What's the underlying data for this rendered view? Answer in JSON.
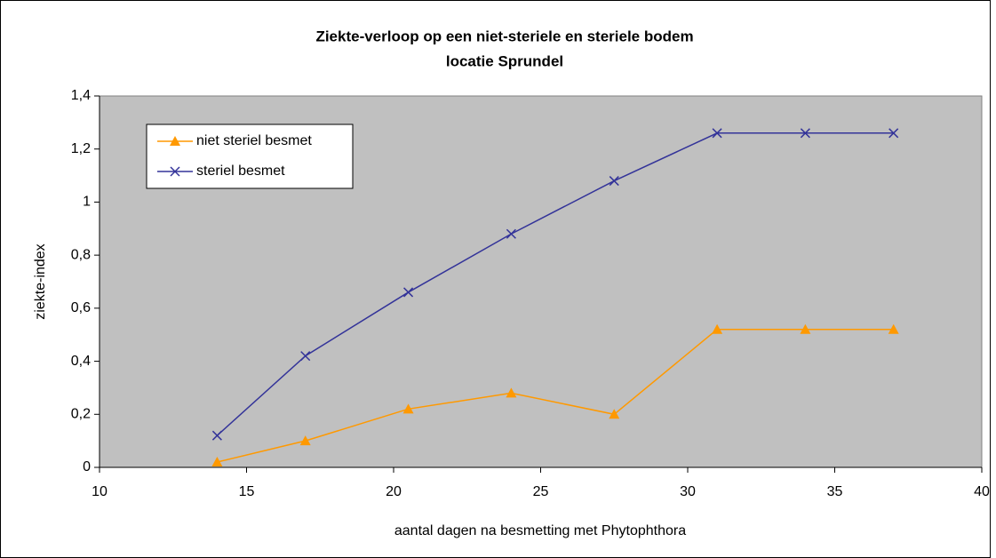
{
  "chart_data": {
    "type": "line",
    "title": "Ziekte-verloop op een niet-steriele en steriele bodem",
    "subtitle": "locatie Sprundel",
    "x_label": "aantal dagen na besmetting met Phytophthora",
    "y_label": "ziekte-index",
    "x": [
      14,
      17,
      20.5,
      24,
      27.5,
      31,
      34,
      37
    ],
    "series": [
      {
        "name": "niet steriel besmet",
        "color": "#ff9900",
        "marker": "triangle",
        "values": [
          0.02,
          0.1,
          0.22,
          0.28,
          0.2,
          0.52,
          0.52,
          0.52
        ]
      },
      {
        "name": "steriel besmet",
        "color": "#333399",
        "marker": "x",
        "values": [
          0.12,
          0.42,
          0.66,
          0.88,
          1.08,
          1.26,
          1.26,
          1.26
        ]
      }
    ],
    "xlim": [
      10,
      40
    ],
    "xticks": [
      10,
      15,
      20,
      25,
      30,
      35,
      40
    ],
    "ylim": [
      0,
      1.4
    ],
    "yticks": [
      0,
      {
        "value": 0.2,
        "label": "0,2"
      },
      {
        "value": 0.4,
        "label": "0,4"
      },
      {
        "value": 0.6,
        "label": "0,6"
      },
      {
        "value": 0.8,
        "label": "0,8"
      },
      1,
      {
        "value": 1.2,
        "label": "1,2"
      },
      {
        "value": 1.4,
        "label": "1,4"
      }
    ],
    "plot_background": "#c0c0c0",
    "legend": "upper left"
  }
}
